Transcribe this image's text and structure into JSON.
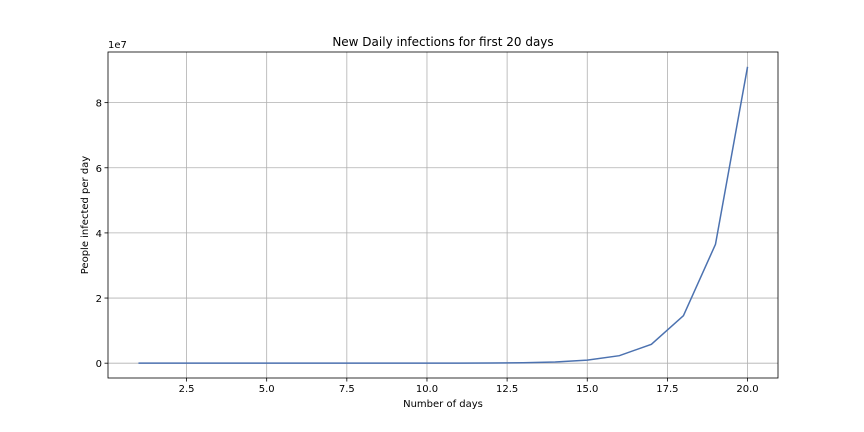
{
  "chart_data": {
    "type": "line",
    "title": "New Daily infections for first 20 days",
    "x_label": "Number of days",
    "y_label": "People infected per day",
    "y_offset_label": "1e7",
    "x": [
      1,
      2,
      3,
      4,
      5,
      6,
      7,
      8,
      9,
      10,
      11,
      12,
      13,
      14,
      15,
      16,
      17,
      18,
      19,
      20
    ],
    "series": [
      {
        "color": "#4c72b0",
        "values": [
          2e-07,
          6e-07,
          1.6e-06,
          4e-06,
          1e-05,
          2.4e-05,
          6e-05,
          0.00015,
          0.00038,
          0.00095,
          0.0024,
          0.006,
          0.015,
          0.037,
          0.093,
          0.23,
          0.58,
          1.46,
          3.65,
          9.1
        ]
      }
    ],
    "xlim": [
      0.05,
      20.95
    ],
    "xticks": [
      2.5,
      {
        "value": 5,
        "label": "5.0"
      },
      7.5,
      {
        "value": 10,
        "label": "10.0"
      },
      12.5,
      {
        "value": 15,
        "label": "15.0"
      },
      17.5,
      {
        "value": 20,
        "label": "20.0"
      }
    ],
    "ylim": [
      -0.455,
      9.555
    ],
    "yticks": [
      0,
      2,
      4,
      6,
      8
    ],
    "grid": true
  }
}
